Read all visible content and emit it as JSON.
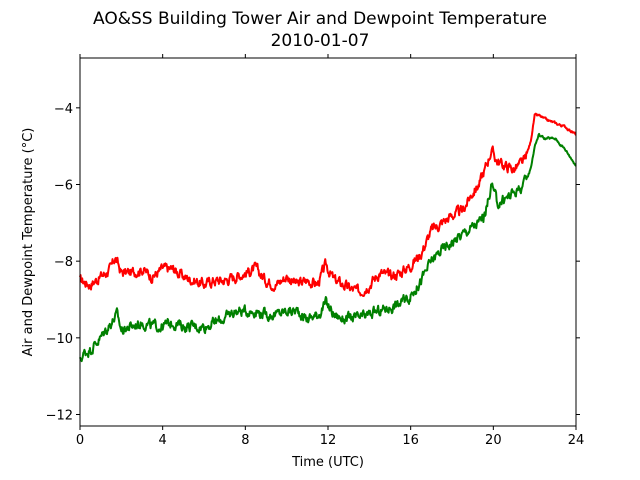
{
  "chart_data": {
    "type": "line",
    "title": "AO&SS Building Tower Air and Dewpoint Temperature",
    "subtitle": "2010-01-07",
    "xlabel": "Time (UTC)",
    "ylabel": "Air and Dewpoint Temperature (°C)",
    "xlim": [
      0,
      24
    ],
    "ylim": [
      -12.3,
      -2.7
    ],
    "xticks": [
      0,
      4,
      8,
      12,
      16,
      20,
      24
    ],
    "xtick_labels": [
      "0",
      "4",
      "8",
      "12",
      "16",
      "20",
      "24"
    ],
    "yticks": [
      -12,
      -10,
      -8,
      -6,
      -4
    ],
    "ytick_labels": [
      "−12",
      "−10",
      "−8",
      "−6",
      "−4"
    ],
    "grid": false,
    "series": [
      {
        "color": "#ff0000",
        "x": [
          0,
          0.5,
          1,
          1.5,
          1.7,
          2,
          2.5,
          3,
          3.5,
          4,
          4.5,
          5,
          5.5,
          6,
          6.5,
          7,
          7.5,
          8,
          8.5,
          9,
          9.5,
          10,
          10.5,
          11,
          11.5,
          11.9,
          12.3,
          12.7,
          13,
          13.5,
          14,
          14.5,
          15,
          15.5,
          16,
          16.5,
          17,
          17.5,
          18,
          18.5,
          19,
          19.3,
          19.6,
          19.9,
          20.2,
          20.5,
          21,
          21.5,
          21.8,
          22,
          22.2,
          22.5,
          23,
          23.5,
          24
        ],
        "y": [
          -8.5,
          -8.6,
          -8.4,
          -8.2,
          -7.9,
          -8.3,
          -8.3,
          -8.2,
          -8.4,
          -8.2,
          -8.2,
          -8.4,
          -8.5,
          -8.6,
          -8.5,
          -8.5,
          -8.4,
          -8.3,
          -8.2,
          -8.5,
          -8.6,
          -8.4,
          -8.6,
          -8.5,
          -8.6,
          -8.1,
          -8.5,
          -8.6,
          -8.7,
          -8.8,
          -8.6,
          -8.3,
          -8.4,
          -8.3,
          -8.1,
          -7.8,
          -7.2,
          -7.0,
          -6.8,
          -6.7,
          -6.2,
          -6.0,
          -5.6,
          -5.1,
          -5.4,
          -5.5,
          -5.6,
          -5.4,
          -4.9,
          -4.2,
          -4.2,
          -4.3,
          -4.4,
          -4.5,
          -4.7
        ]
      },
      {
        "color": "#008000",
        "x": [
          0,
          0.2,
          0.5,
          1,
          1.5,
          1.8,
          2,
          2.5,
          3,
          3.5,
          4,
          4.5,
          5,
          5.5,
          6,
          6.5,
          7,
          7.5,
          8,
          8.5,
          9,
          9.5,
          10,
          10.5,
          11,
          11.5,
          11.9,
          12.3,
          12.7,
          13,
          13.5,
          14,
          14.5,
          15,
          15.5,
          16,
          16.5,
          17,
          17.5,
          18,
          18.5,
          19,
          19.3,
          19.6,
          19.9,
          20.2,
          20.5,
          21,
          21.5,
          21.8,
          22,
          22.2,
          22.5,
          23,
          23.5,
          24
        ],
        "y": [
          -10.6,
          -10.4,
          -10.3,
          -10.0,
          -9.6,
          -9.4,
          -9.8,
          -9.7,
          -9.6,
          -9.7,
          -9.7,
          -9.6,
          -9.7,
          -9.7,
          -9.7,
          -9.6,
          -9.5,
          -9.3,
          -9.3,
          -9.3,
          -9.4,
          -9.4,
          -9.3,
          -9.3,
          -9.5,
          -9.4,
          -9.1,
          -9.4,
          -9.5,
          -9.5,
          -9.5,
          -9.4,
          -9.3,
          -9.2,
          -9.1,
          -8.9,
          -8.5,
          -8.0,
          -7.7,
          -7.5,
          -7.3,
          -7.1,
          -7.0,
          -6.8,
          -6.0,
          -6.5,
          -6.4,
          -6.2,
          -6.0,
          -5.6,
          -5.0,
          -4.7,
          -4.8,
          -4.8,
          -5.1,
          -5.5
        ]
      }
    ]
  }
}
